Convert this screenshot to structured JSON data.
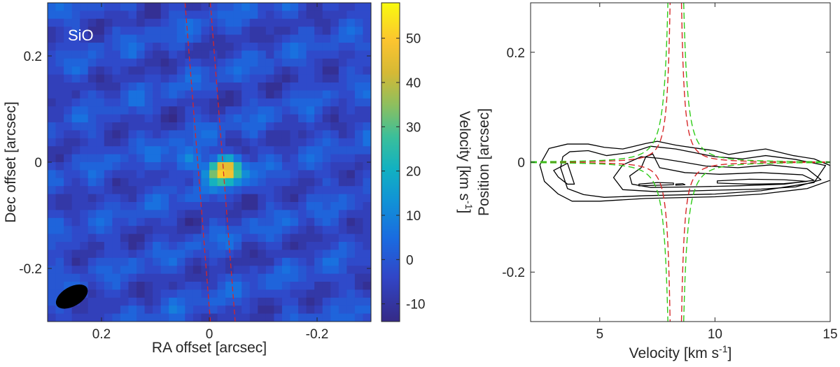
{
  "chart_data": [
    {
      "type": "heatmap",
      "panel": "left",
      "title": "",
      "label": "SiO",
      "xlabel": "RA offset [arcsec]",
      "ylabel": "Dec offset [arcsec]",
      "xlim": [
        0.3,
        -0.3
      ],
      "ylim": [
        -0.3,
        0.3
      ],
      "xticks": [
        0.2,
        0,
        -0.2
      ],
      "xtick_labels": [
        "0.2",
        "0",
        "-0.2"
      ],
      "yticks": [
        -0.2,
        0,
        0.2
      ],
      "ytick_labels": [
        "-0.2",
        "0",
        "0.2"
      ],
      "colorbar": {
        "label_main": "Velocity [km s",
        "label_sup": "-1",
        "label_end": "]",
        "range": [
          -14,
          58
        ],
        "ticks": [
          -10,
          0,
          10,
          20,
          30,
          40,
          50
        ],
        "tick_labels": [
          "-10",
          "0",
          "10",
          "20",
          "30",
          "40",
          "50"
        ],
        "colormap": "parula"
      },
      "background_level": -3,
      "emission_sources": [
        {
          "name": "main-peak",
          "ra": -0.03,
          "dec": -0.015,
          "amplitude": 60
        },
        {
          "name": "secondary-peak",
          "ra": 0.045,
          "dec": 0.0,
          "amplitude": 18
        }
      ],
      "guide_lines": [
        {
          "name": "red-dashed-line-1",
          "color": "#d62728",
          "points": [
            [
              0.045,
              0.3
            ],
            [
              -0.002,
              -0.3
            ]
          ]
        },
        {
          "name": "red-dashed-line-2",
          "color": "#d62728",
          "points": [
            [
              -0.002,
              0.3
            ],
            [
              -0.048,
              -0.3
            ]
          ]
        }
      ],
      "beam": {
        "ra": 0.255,
        "dec": -0.253,
        "major": 0.065,
        "minor": 0.036,
        "pa_deg": 30,
        "color": "#000000"
      }
    },
    {
      "type": "line",
      "panel": "right",
      "title": "",
      "xlabel_main": "Velocity [km s",
      "xlabel_sup": "-1",
      "xlabel_end": "]",
      "ylabel": "Position [arcsec]",
      "xlim": [
        2,
        15
      ],
      "ylim": [
        -0.29,
        0.29
      ],
      "xticks": [
        5,
        10,
        15
      ],
      "xtick_labels": [
        "5",
        "10",
        "15"
      ],
      "yticks": [
        -0.2,
        0,
        0.2
      ],
      "yticks_labels": [
        "-0.2",
        "0",
        "0.2"
      ],
      "series": [
        {
          "name": "contour-1",
          "color": "#000000",
          "closed": true,
          "points": [
            [
              2.8,
              0.025
            ],
            [
              3.6,
              0.033
            ],
            [
              4.5,
              0.033
            ],
            [
              5.2,
              0.027
            ],
            [
              6.0,
              0.024
            ],
            [
              7.0,
              0.034
            ],
            [
              7.5,
              0.038
            ],
            [
              8.3,
              0.031
            ],
            [
              9.1,
              0.026
            ],
            [
              10.0,
              0.021
            ],
            [
              10.6,
              0.014
            ],
            [
              11.3,
              0.019
            ],
            [
              12.2,
              0.024
            ],
            [
              13.4,
              0.012
            ],
            [
              14.3,
              0.006
            ],
            [
              15.0,
              -0.006
            ],
            [
              15.0,
              -0.033
            ],
            [
              14.0,
              -0.048
            ],
            [
              12.0,
              -0.058
            ],
            [
              10.0,
              -0.063
            ],
            [
              7.0,
              -0.066
            ],
            [
              5.0,
              -0.071
            ],
            [
              3.8,
              -0.071
            ],
            [
              3.2,
              -0.058
            ],
            [
              2.6,
              -0.035
            ],
            [
              2.4,
              -0.005
            ]
          ]
        },
        {
          "name": "contour-2",
          "color": "#000000",
          "closed": true,
          "points": [
            [
              3.7,
              0.019
            ],
            [
              4.5,
              0.021
            ],
            [
              5.3,
              0.012
            ],
            [
              6.4,
              0.018
            ],
            [
              7.2,
              0.029
            ],
            [
              8.3,
              0.024
            ],
            [
              10.0,
              0.01
            ],
            [
              11.2,
              0.006
            ],
            [
              12.2,
              0.012
            ],
            [
              13.5,
              0.005
            ],
            [
              14.8,
              -0.006
            ],
            [
              14.3,
              -0.037
            ],
            [
              12.0,
              -0.052
            ],
            [
              10.0,
              -0.058
            ],
            [
              7.0,
              -0.061
            ],
            [
              5.2,
              -0.064
            ],
            [
              4.3,
              -0.059
            ],
            [
              3.6,
              -0.048
            ],
            [
              3.3,
              -0.01
            ],
            [
              3.4,
              0.01
            ]
          ]
        },
        {
          "name": "contour-3",
          "color": "#000000",
          "closed": true,
          "points": [
            [
              6.0,
              -0.005
            ],
            [
              6.8,
              0.01
            ],
            [
              7.6,
              0.007
            ],
            [
              8.5,
              0.001
            ],
            [
              9.6,
              -0.007
            ],
            [
              11.0,
              -0.01
            ],
            [
              12.4,
              -0.005
            ],
            [
              14.0,
              -0.012
            ],
            [
              14.6,
              -0.032
            ],
            [
              13.5,
              -0.045
            ],
            [
              12.0,
              -0.049
            ],
            [
              10.0,
              -0.051
            ],
            [
              7.6,
              -0.054
            ],
            [
              6.0,
              -0.05
            ],
            [
              5.6,
              -0.028
            ]
          ]
        },
        {
          "name": "contour-4",
          "color": "#000000",
          "closed": true,
          "points": [
            [
              6.3,
              -0.025
            ],
            [
              6.8,
              -0.01
            ],
            [
              7.0,
              0.01
            ],
            [
              7.3,
              0.015
            ],
            [
              7.6,
              -0.01
            ],
            [
              8.7,
              -0.019
            ],
            [
              10.2,
              -0.022
            ],
            [
              12.0,
              -0.019
            ],
            [
              13.8,
              -0.023
            ],
            [
              14.3,
              -0.033
            ],
            [
              13.0,
              -0.04
            ],
            [
              11.0,
              -0.043
            ],
            [
              9.0,
              -0.045
            ],
            [
              7.2,
              -0.046
            ],
            [
              6.4,
              -0.04
            ]
          ]
        },
        {
          "name": "contour-5",
          "color": "#000000",
          "closed": true,
          "points": [
            [
              6.7,
              -0.04
            ],
            [
              7.5,
              -0.037
            ],
            [
              8.2,
              -0.038
            ],
            [
              8.2,
              -0.041
            ],
            [
              7.5,
              -0.042
            ],
            [
              6.7,
              -0.043
            ]
          ]
        },
        {
          "name": "contour-6",
          "color": "#000000",
          "closed": true,
          "points": [
            [
              10.1,
              -0.034
            ],
            [
              11.5,
              -0.031
            ],
            [
              13.0,
              -0.032
            ],
            [
              14.0,
              -0.035
            ],
            [
              13.0,
              -0.039
            ],
            [
              11.5,
              -0.04
            ],
            [
              10.1,
              -0.038
            ]
          ]
        },
        {
          "name": "contour-7",
          "color": "#000000",
          "closed": true,
          "points": [
            [
              8.3,
              -0.04
            ],
            [
              8.6,
              -0.039
            ],
            [
              8.7,
              -0.041
            ],
            [
              8.3,
              -0.042
            ]
          ]
        },
        {
          "name": "contour-8",
          "color": "#000000",
          "closed": true,
          "points": [
            [
              3.0,
              -0.015
            ],
            [
              3.6,
              -0.002
            ],
            [
              3.9,
              -0.04
            ],
            [
              3.6,
              -0.04
            ],
            [
              3.2,
              -0.027
            ]
          ]
        },
        {
          "name": "keplerian-red",
          "color": "#d62728",
          "dashed": true,
          "curve": "kepler",
          "vsys": 8.3,
          "k": 0.0176,
          "cap": 0.29
        },
        {
          "name": "keplerian-green",
          "color": "#2ecc18",
          "dashed": true,
          "curve": "kepler",
          "vsys": 8.3,
          "k": 0.034,
          "cap": 0.29
        }
      ]
    }
  ]
}
